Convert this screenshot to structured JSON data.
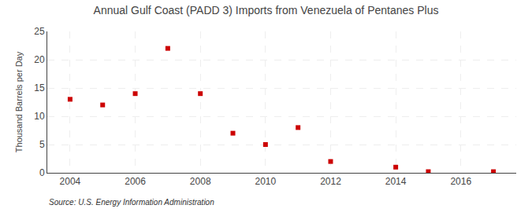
{
  "chart_data": {
    "type": "scatter",
    "title": "Annual Gulf Coast (PADD 3) Imports from Venezuela of Pentanes Plus",
    "ylabel": "Thousand Barrels per Day",
    "annotations": [
      "Source: U.S. Energy Information Administration"
    ],
    "x": [
      2004,
      2005,
      2006,
      2007,
      2008,
      2009,
      2010,
      2011,
      2012,
      2014,
      2015,
      2017
    ],
    "values": [
      13.0,
      12.0,
      14.0,
      22.0,
      14.0,
      7.0,
      5.0,
      8.0,
      2.0,
      1.0,
      0.2,
      0.2
    ],
    "color": "#cc0000",
    "marker": "square",
    "xlim": [
      2003.3,
      2017.7
    ],
    "xticks": [
      2004,
      2006,
      2008,
      2010,
      2012,
      2014,
      2016
    ],
    "ylim": [
      0,
      25
    ],
    "yticks": [
      0,
      5,
      10,
      15,
      20,
      25
    ],
    "grid": true
  }
}
